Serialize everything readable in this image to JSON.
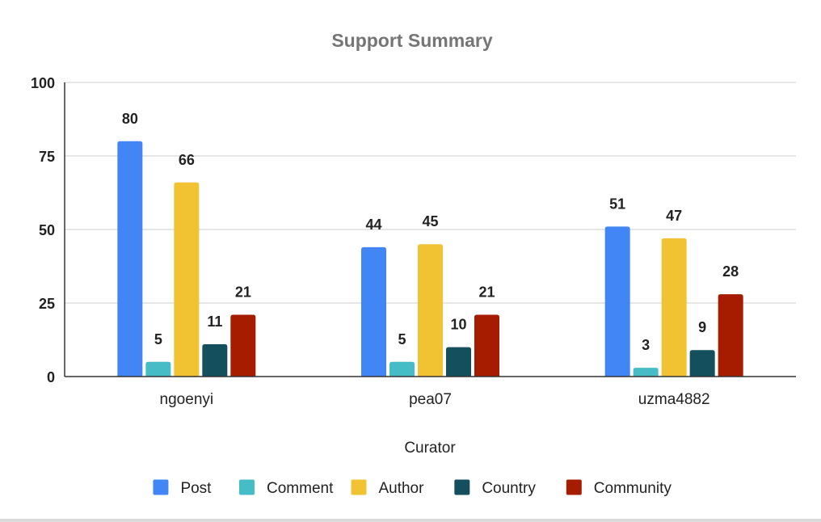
{
  "chart_data": {
    "type": "bar",
    "title": "Support Summary",
    "xlabel": "Curator",
    "ylabel": "",
    "categories": [
      "ngoenyi",
      "pea07",
      "uzma4882"
    ],
    "ylim": [
      0,
      100
    ],
    "yticks": [
      0,
      25,
      50,
      75,
      100
    ],
    "grid": true,
    "legend_position": "bottom",
    "data_labels": true,
    "series": [
      {
        "name": "Post",
        "color": "#4285f4",
        "values": [
          80,
          44,
          51
        ]
      },
      {
        "name": "Comment",
        "color": "#46bdc6",
        "values": [
          5,
          5,
          3
        ]
      },
      {
        "name": "Author",
        "color": "#f1c232",
        "values": [
          66,
          45,
          47
        ]
      },
      {
        "name": "Country",
        "color": "#134f5c",
        "values": [
          11,
          10,
          9
        ]
      },
      {
        "name": "Community",
        "color": "#a61c00",
        "values": [
          21,
          21,
          28
        ]
      }
    ]
  }
}
